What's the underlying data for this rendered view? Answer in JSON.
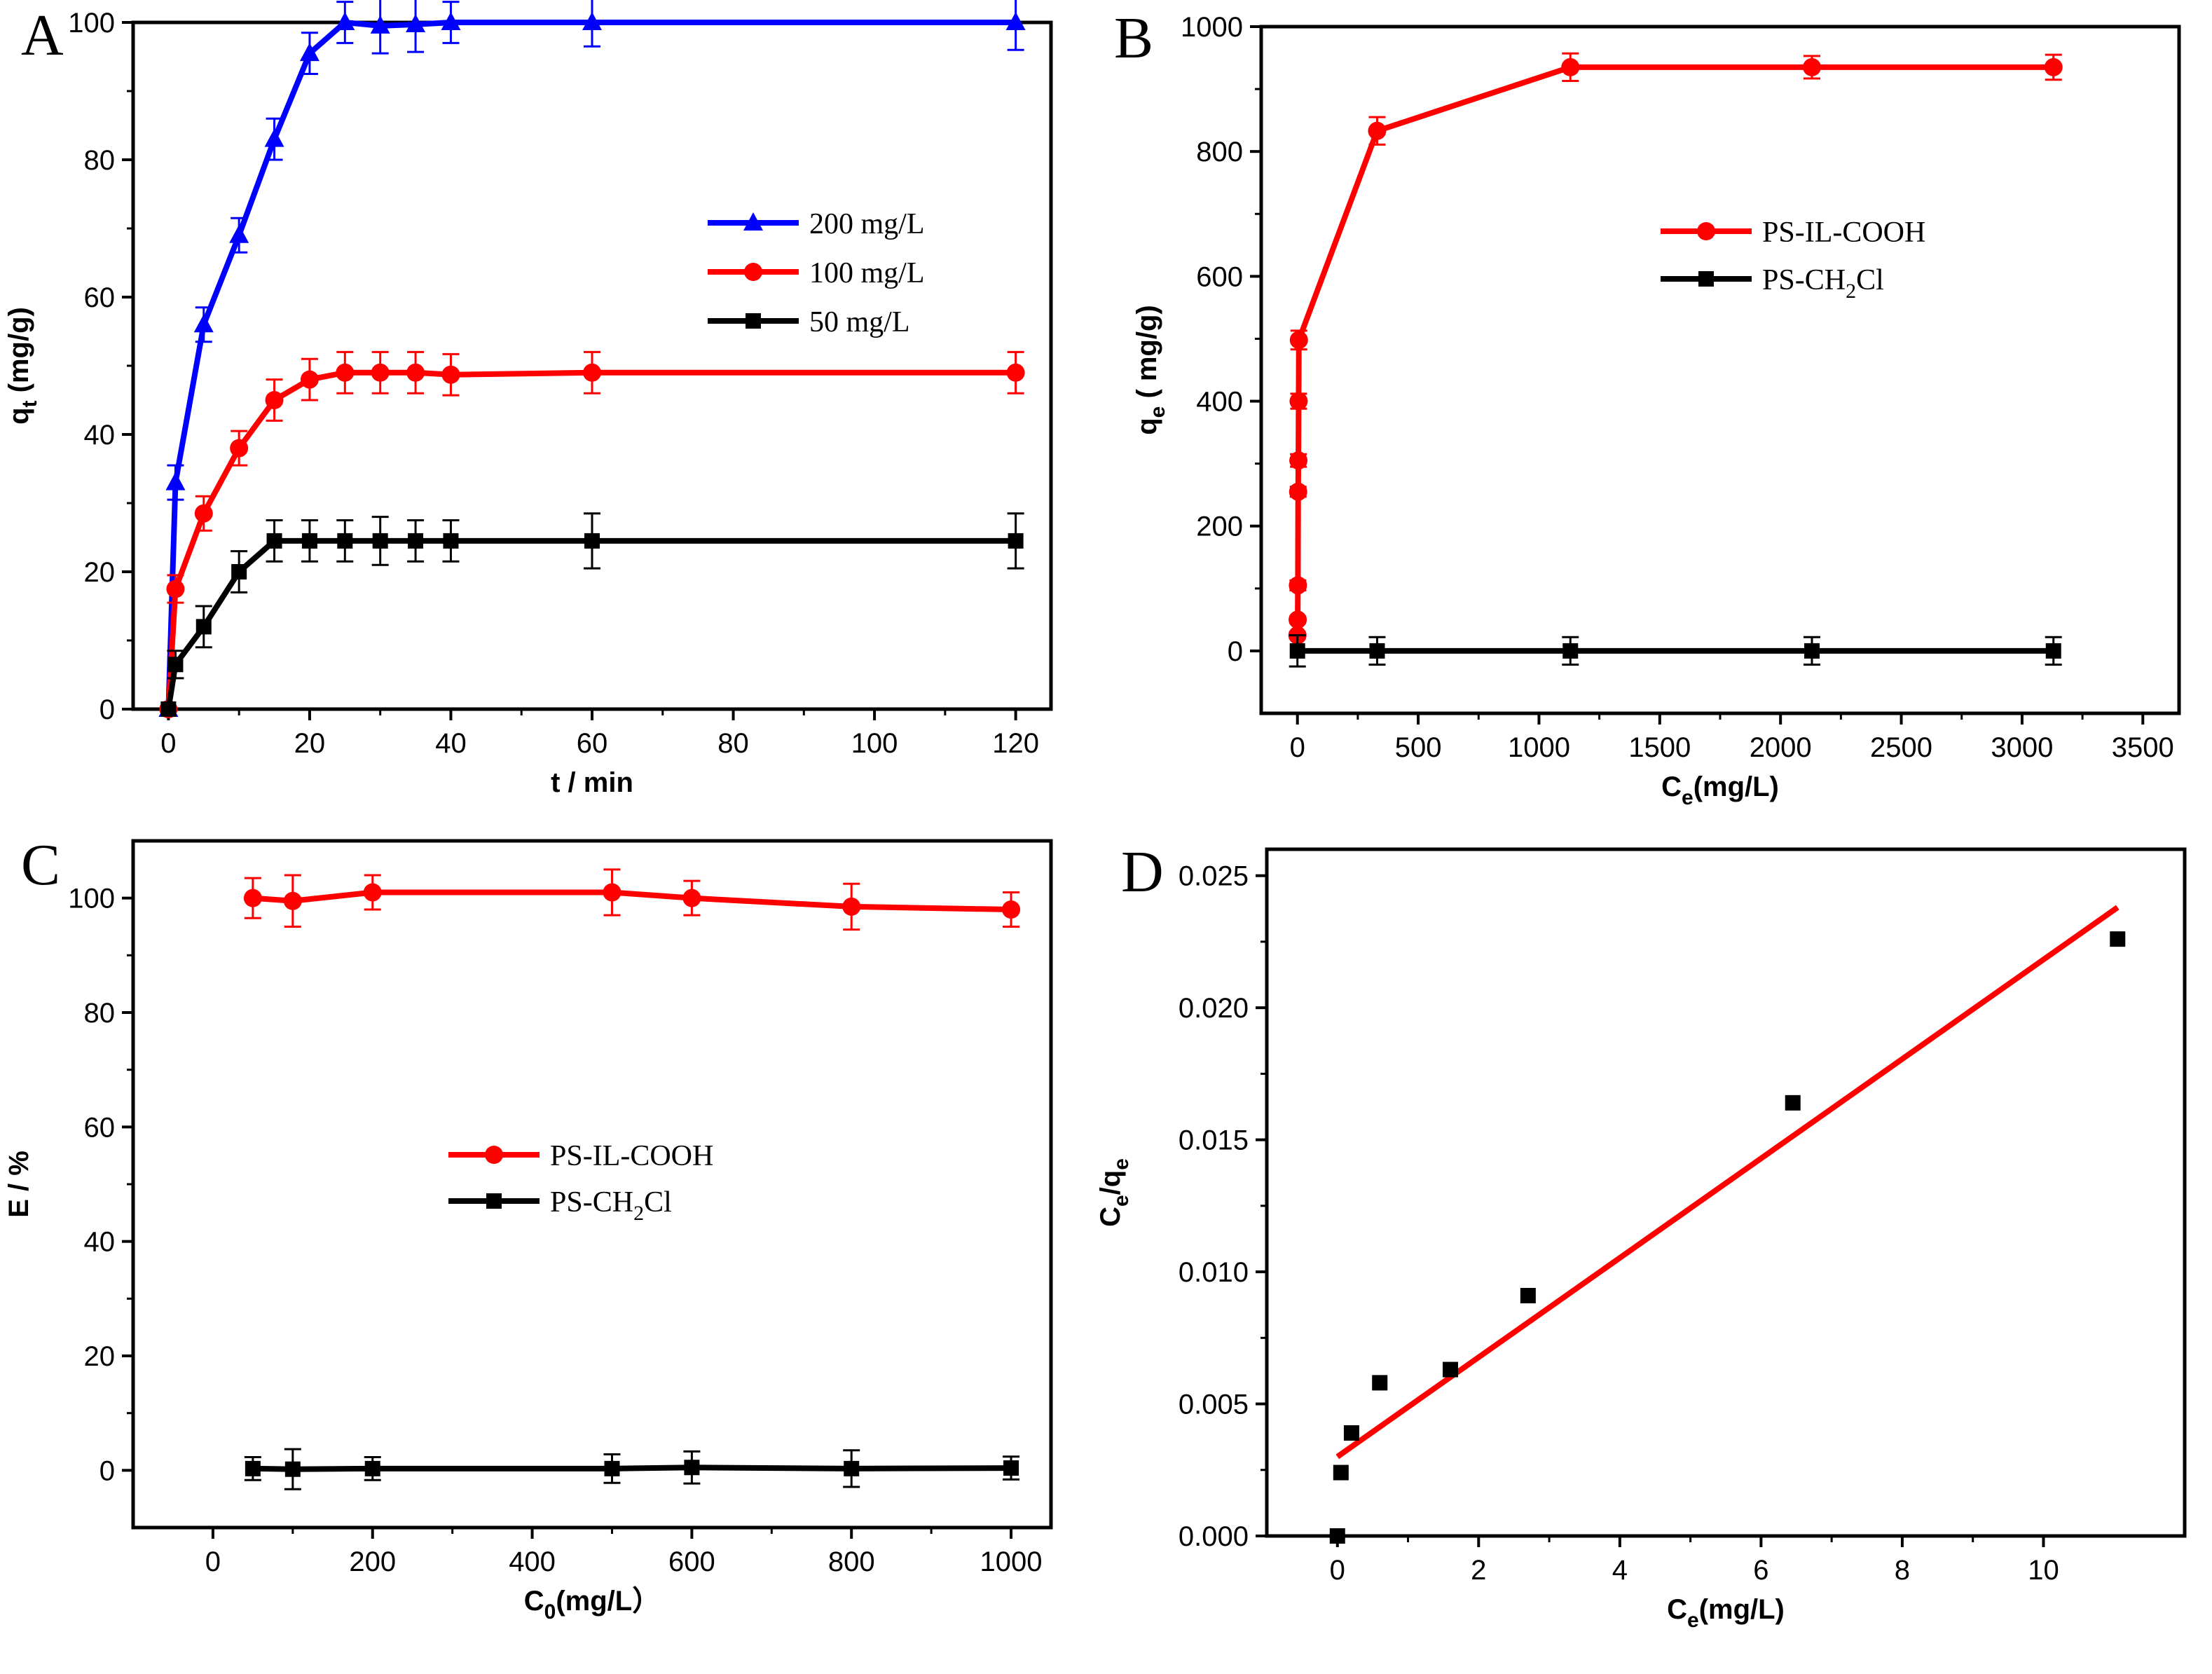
{
  "chart_data": [
    {
      "panel": "A",
      "type": "line",
      "xlabel": "t / min",
      "ylabel": "q",
      "ylabel_sub": "t",
      "ylabel_unit": "(mg/g)",
      "xlim": [
        -5,
        125
      ],
      "ylim": [
        0,
        100
      ],
      "xticks": [
        0,
        20,
        40,
        60,
        80,
        100,
        120
      ],
      "yticks": [
        0,
        20,
        40,
        60,
        80,
        100
      ],
      "legend_position": "center-right",
      "series": [
        {
          "name": "200 mg/L",
          "color": "#0000ff",
          "marker": "triangle",
          "x": [
            0,
            1,
            5,
            10,
            15,
            20,
            25,
            30,
            35,
            40,
            60,
            120
          ],
          "y": [
            0,
            33,
            56,
            69,
            83,
            95.5,
            100,
            99.5,
            99.7,
            100,
            100,
            100
          ],
          "err": [
            0,
            2.5,
            2.5,
            2.5,
            3,
            3,
            3,
            4,
            4,
            3,
            3.5,
            4
          ]
        },
        {
          "name": "100 mg/L",
          "color": "#ff0000",
          "marker": "circle",
          "x": [
            0,
            1,
            5,
            10,
            15,
            20,
            25,
            30,
            35,
            40,
            60,
            120
          ],
          "y": [
            0,
            17.5,
            28.5,
            38,
            45,
            48,
            49,
            49,
            49,
            48.7,
            49,
            49
          ],
          "err": [
            0,
            2,
            2.5,
            2.5,
            3,
            3,
            3,
            3,
            3,
            3,
            3,
            3
          ]
        },
        {
          "name": "50 mg/L",
          "color": "#000000",
          "marker": "square",
          "x": [
            0,
            1,
            5,
            10,
            15,
            20,
            25,
            30,
            35,
            40,
            60,
            120
          ],
          "y": [
            0,
            6.5,
            12,
            20,
            24.5,
            24.5,
            24.5,
            24.5,
            24.5,
            24.5,
            24.5,
            24.5
          ],
          "err": [
            0,
            2,
            3,
            3,
            3,
            3,
            3,
            3.5,
            3,
            3,
            4,
            4
          ]
        }
      ]
    },
    {
      "panel": "B",
      "type": "line",
      "xlabel": "C",
      "xlabel_sub": "e",
      "xlabel_unit": "(mg/L)",
      "ylabel": "q",
      "ylabel_sub": "e",
      "ylabel_unit": " ( mg/g)",
      "xlim": [
        -150,
        3650
      ],
      "ylim": [
        -100,
        1000
      ],
      "xticks": [
        0,
        500,
        1000,
        1500,
        2000,
        2500,
        3000,
        3500
      ],
      "yticks": [
        0,
        200,
        400,
        600,
        800,
        1000
      ],
      "legend_position": "center-right",
      "series": [
        {
          "name": "PS-IL-COOH",
          "color": "#ff0000",
          "marker": "circle",
          "x": [
            0,
            1,
            2,
            3,
            4,
            5,
            6,
            330,
            1130,
            2130,
            3130
          ],
          "y": [
            25,
            50,
            105,
            255,
            305,
            400,
            498,
            833,
            935,
            935,
            935
          ],
          "err": [
            5,
            5,
            8,
            8,
            10,
            12,
            15,
            22,
            22,
            18,
            20
          ]
        },
        {
          "name": "PS-CH",
          "name_sub": "2",
          "name_tail": "Cl",
          "color": "#000000",
          "marker": "square",
          "x": [
            0,
            330,
            1130,
            2130,
            3130
          ],
          "y": [
            0,
            0,
            0,
            0,
            0
          ],
          "err": [
            25,
            22,
            22,
            22,
            22
          ]
        }
      ]
    },
    {
      "panel": "C",
      "type": "line",
      "xlabel": "C",
      "xlabel_sub": "0",
      "xlabel_unit": "(mg/L）",
      "ylabel": "E / %",
      "xlim": [
        -100,
        1050
      ],
      "ylim": [
        -10,
        110
      ],
      "xticks": [
        0,
        200,
        400,
        600,
        800,
        1000
      ],
      "yticks": [
        0,
        20,
        40,
        60,
        80,
        100
      ],
      "legend_position": "center",
      "series": [
        {
          "name": "PS-IL-COOH",
          "color": "#ff0000",
          "marker": "circle",
          "x": [
            50,
            100,
            200,
            500,
            600,
            800,
            1000
          ],
          "y": [
            100,
            99.5,
            101,
            101,
            100,
            98.5,
            98
          ],
          "err": [
            3.5,
            4.5,
            3,
            4,
            3,
            4,
            3
          ]
        },
        {
          "name": "PS-CH",
          "name_sub": "2",
          "name_tail": "Cl",
          "color": "#000000",
          "marker": "square",
          "x": [
            50,
            100,
            200,
            500,
            600,
            800,
            1000
          ],
          "y": [
            0.3,
            0.2,
            0.3,
            0.3,
            0.5,
            0.3,
            0.4
          ],
          "err": [
            2,
            3.5,
            2,
            2.5,
            2.8,
            3.2,
            2
          ]
        }
      ]
    },
    {
      "panel": "D",
      "type": "scatter",
      "xlabel": "C",
      "xlabel_sub": "e",
      "xlabel_unit": "(mg/L)",
      "ylabel": "C",
      "ylabel_sub": "e",
      "ylabel_mid": "/q",
      "ylabel_sub2": "e",
      "xlim": [
        -1,
        12
      ],
      "ylim": [
        0,
        0.026
      ],
      "xticks": [
        0,
        2,
        4,
        6,
        8,
        10
      ],
      "xtick_labels": [
        "0",
        "2",
        "4",
        "6",
        "8",
        "10"
      ],
      "yticks": [
        0,
        0.005,
        0.01,
        0.015,
        0.02,
        0.025
      ],
      "ytick_labels": [
        "0.000",
        "0.005",
        "0.010",
        "0.015",
        "0.020",
        "0.025"
      ],
      "points": {
        "color": "#000000",
        "x": [
          0.0,
          0.05,
          0.2,
          0.6,
          1.6,
          2.7,
          6.45,
          11.05
        ],
        "y": [
          0.0,
          0.0024,
          0.0039,
          0.0058,
          0.0063,
          0.0091,
          0.0164,
          0.0226
        ]
      },
      "fit": {
        "color": "#ff0000",
        "x": [
          0.0,
          11.05
        ],
        "y": [
          0.003,
          0.0238
        ]
      }
    }
  ]
}
